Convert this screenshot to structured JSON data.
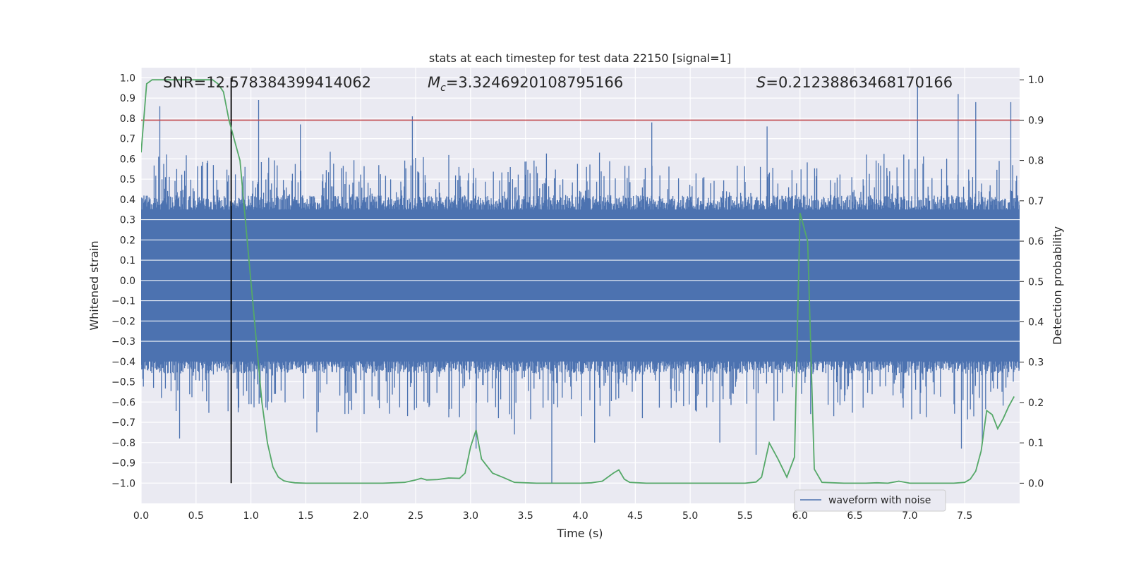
{
  "chart_data": {
    "type": "line",
    "title": "stats at each timestep for test data 22150 [signal=1]",
    "xlabel": "Time (s)",
    "ylabel": "Whitened strain",
    "y2label": "Detection probability",
    "xlim": [
      0.0,
      8.0
    ],
    "ylim": [
      -1.1,
      1.05
    ],
    "y2lim": [
      -0.05,
      1.03
    ],
    "x_ticks": [
      "0.0",
      "0.5",
      "1.0",
      "1.5",
      "2.0",
      "2.5",
      "3.0",
      "3.5",
      "4.0",
      "4.5",
      "5.0",
      "5.5",
      "6.0",
      "6.5",
      "7.0",
      "7.5"
    ],
    "y_ticks": [
      "1.0",
      "0.9",
      "0.8",
      "0.7",
      "0.6",
      "0.5",
      "0.4",
      "0.3",
      "0.2",
      "0.1",
      "0.0",
      "-0.1",
      "-0.2",
      "-0.3",
      "-0.4",
      "-0.5",
      "-0.6",
      "-0.7",
      "-0.8",
      "-0.9",
      "-1.0"
    ],
    "y2_ticks": [
      "1.0",
      "0.9",
      "0.8",
      "0.7",
      "0.6",
      "0.5",
      "0.4",
      "0.3",
      "0.2",
      "0.1",
      "0.0"
    ],
    "annotations": {
      "snr": "SNR=12.578384399414062",
      "mc_symbol": "M",
      "mc_sub": "c",
      "mc_value": "=3.3246920108795166",
      "s_symbol": "S",
      "s_value": "=0.21238863468170166"
    },
    "threshold": {
      "y2": 0.9,
      "color": "#c44e52"
    },
    "marker_time": 0.82,
    "legend": {
      "label": "waveform with noise",
      "position": "lower-right"
    },
    "series": [
      {
        "name": "waveform with noise",
        "axis": "left",
        "color": "#4c72b0",
        "core_band": [
          -0.4,
          0.35
        ],
        "spikes": [
          {
            "x": 0.17,
            "y": 0.86
          },
          {
            "x": 0.35,
            "y": -0.78
          },
          {
            "x": 0.6,
            "y": 0.58
          },
          {
            "x": 0.82,
            "y": 0.55
          },
          {
            "x": 1.07,
            "y": 0.89
          },
          {
            "x": 1.45,
            "y": 0.77
          },
          {
            "x": 1.6,
            "y": -0.75
          },
          {
            "x": 2.47,
            "y": 0.81
          },
          {
            "x": 3.05,
            "y": -0.83
          },
          {
            "x": 3.4,
            "y": -0.76
          },
          {
            "x": 3.74,
            "y": -1.0
          },
          {
            "x": 4.13,
            "y": -0.8
          },
          {
            "x": 4.65,
            "y": 0.78
          },
          {
            "x": 5.27,
            "y": -0.8
          },
          {
            "x": 5.6,
            "y": -0.86
          },
          {
            "x": 5.7,
            "y": 0.76
          },
          {
            "x": 7.07,
            "y": 0.96
          },
          {
            "x": 7.44,
            "y": 0.92
          },
          {
            "x": 7.47,
            "y": -0.83
          },
          {
            "x": 7.6,
            "y": 0.88
          },
          {
            "x": 7.66,
            "y": -0.8
          },
          {
            "x": 7.92,
            "y": 0.88
          }
        ]
      },
      {
        "name": "detection probability",
        "axis": "right",
        "color": "#55a868",
        "x": [
          0.0,
          0.05,
          0.1,
          0.2,
          0.3,
          0.4,
          0.5,
          0.6,
          0.65,
          0.7,
          0.75,
          0.8,
          0.85,
          0.9,
          1.0,
          1.05,
          1.1,
          1.15,
          1.2,
          1.25,
          1.3,
          1.35,
          1.4,
          1.5,
          1.6,
          1.7,
          1.8,
          2.0,
          2.1,
          2.2,
          2.4,
          2.5,
          2.55,
          2.6,
          2.7,
          2.8,
          2.9,
          2.95,
          3.0,
          3.05,
          3.1,
          3.2,
          3.3,
          3.35,
          3.4,
          3.6,
          3.7,
          3.8,
          4.0,
          4.1,
          4.2,
          4.3,
          4.35,
          4.4,
          4.45,
          4.6,
          4.8,
          5.0,
          5.2,
          5.3,
          5.5,
          5.6,
          5.65,
          5.72,
          5.8,
          5.88,
          5.95,
          6.0,
          6.07,
          6.13,
          6.2,
          6.4,
          6.6,
          6.7,
          6.8,
          6.9,
          7.0,
          7.2,
          7.4,
          7.5,
          7.55,
          7.6,
          7.65,
          7.7,
          7.75,
          7.8,
          7.85,
          7.9,
          7.95
        ],
        "y": [
          0.82,
          0.99,
          1.0,
          1.0,
          1.0,
          1.0,
          1.0,
          1.0,
          1.0,
          0.99,
          0.97,
          0.9,
          0.85,
          0.8,
          0.5,
          0.35,
          0.2,
          0.1,
          0.04,
          0.015,
          0.006,
          0.003,
          0.001,
          0.0,
          0.0,
          0.0,
          0.0,
          0.0,
          0.0,
          0.0,
          0.002,
          0.008,
          0.012,
          0.008,
          0.009,
          0.013,
          0.012,
          0.025,
          0.09,
          0.132,
          0.06,
          0.025,
          0.014,
          0.008,
          0.002,
          0.0,
          0.0,
          0.0,
          0.0,
          0.001,
          0.005,
          0.025,
          0.033,
          0.01,
          0.002,
          0.0,
          0.0,
          0.0,
          0.0,
          0.0,
          0.0,
          0.003,
          0.015,
          0.1,
          0.06,
          0.015,
          0.065,
          0.67,
          0.6,
          0.035,
          0.002,
          0.0,
          0.0,
          0.001,
          0.0,
          0.005,
          0.0,
          0.0,
          0.0,
          0.002,
          0.01,
          0.03,
          0.08,
          0.18,
          0.17,
          0.135,
          0.16,
          0.19,
          0.215
        ]
      }
    ]
  }
}
